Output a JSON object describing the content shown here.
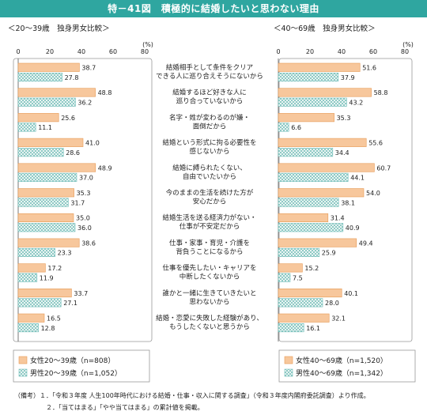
{
  "title": "特－41図　積極的に結婚したいと思わない理由",
  "colors": {
    "header": "#2fa6a0",
    "female_fill": "#f7c79c",
    "female_stroke": "#e69a55",
    "male_fill": "#e9f4f3",
    "male_stroke": "#6fbdb8",
    "frame": "#999999"
  },
  "chart_data": {
    "type": "bar",
    "orientation": "horizontal",
    "unit": "(%)",
    "xlim": [
      0,
      80
    ],
    "ticks": [
      0,
      20,
      40,
      60,
      80
    ],
    "categories": [
      [
        "結婚相手として条件をクリア",
        "できる人に巡り合えそうにないから"
      ],
      [
        "結婚するほど好きな人に",
        "巡り合っていないから"
      ],
      [
        "名字・姓が変わるのが嫌・",
        "面倒だから"
      ],
      [
        "結婚という形式に拘る必要性を",
        "感じないから"
      ],
      [
        "結婚に縛られたくない、",
        "自由でいたいから"
      ],
      [
        "今のままの生活を続けた方が",
        "安心だから"
      ],
      [
        "結婚生活を送る経済力がない・",
        "仕事が不安定だから"
      ],
      [
        "仕事・家事・育児・介護を",
        "背負うことになるから"
      ],
      [
        "仕事を優先したい・キャリアを",
        "中断したくないから"
      ],
      [
        "誰かと一緒に生きていきたいと",
        "思わないから"
      ],
      [
        "結婚・恋愛に失敗した経験があり、",
        "もうしたくないと思うから"
      ]
    ],
    "panels": [
      {
        "title": "＜20～39歳　独身男女比較＞",
        "series": [
          {
            "name": "女性20～39歳（n=808）",
            "values": [
              38.7,
              48.8,
              25.6,
              41.0,
              48.9,
              35.3,
              35.0,
              38.6,
              17.2,
              33.7,
              16.5
            ]
          },
          {
            "name": "男性20～39歳（n=1,052）",
            "values": [
              27.8,
              36.2,
              11.1,
              28.6,
              37.0,
              31.7,
              36.0,
              23.3,
              11.9,
              27.1,
              12.8
            ]
          }
        ]
      },
      {
        "title": "＜40～69歳　独身男女比較＞",
        "series": [
          {
            "name": "女性40～69歳（n=1,520）",
            "values": [
              51.6,
              58.8,
              35.3,
              55.6,
              60.7,
              54.0,
              31.4,
              49.4,
              15.2,
              40.1,
              32.1
            ]
          },
          {
            "name": "男性40～69歳（n=1,342）",
            "values": [
              37.9,
              43.2,
              6.6,
              34.4,
              44.1,
              38.1,
              40.9,
              25.9,
              7.5,
              28.0,
              16.1
            ]
          }
        ]
      }
    ]
  },
  "notes": [
    "（備考）１．「令和３年度 人生100年時代における結婚・仕事・収入に関する調査」（令和３年度内閣府委託調査）より作成。",
    "２．「当てはまる」「やや当てはまる」の累計値を掲載。"
  ]
}
